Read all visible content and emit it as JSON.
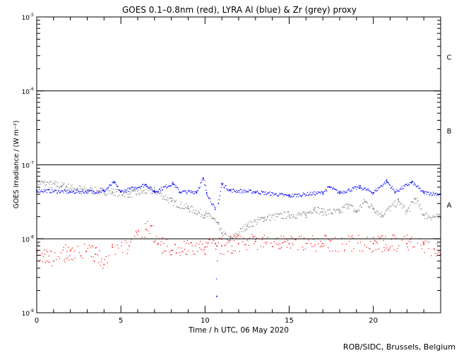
{
  "chart_data": {
    "type": "scatter",
    "title": "GOES 0.1–0.8nm (red), LYRA Al (blue) & Zr (grey) proxy",
    "xlabel": "Time / h UTC, 06 May 2020",
    "ylabel": "GOES Irradiance / (W m⁻²)",
    "xlim": [
      0,
      24
    ],
    "ylim": [
      1e-09,
      1e-05
    ],
    "yscale": "log",
    "xticks": [
      0,
      5,
      10,
      15,
      20
    ],
    "yticks": [
      {
        "base": "10",
        "exp": "-9",
        "v": 1e-09
      },
      {
        "base": "10",
        "exp": "-8",
        "v": 1e-08
      },
      {
        "base": "10",
        "exp": "-7",
        "v": 1e-07
      },
      {
        "base": "10",
        "exp": "-6",
        "v": 1e-06
      },
      {
        "base": "10",
        "exp": "-5",
        "v": 1e-05
      }
    ],
    "flare_classes": [
      {
        "label": "A",
        "lo": 1e-08
      },
      {
        "label": "B",
        "lo": 1e-07
      },
      {
        "label": "C",
        "lo": 1e-06
      }
    ],
    "series": [
      {
        "name": "LYRA Zr proxy",
        "color": "#808080",
        "points": [
          [
            0,
            5.8e-08
          ],
          [
            1.5,
            5.2e-08
          ],
          [
            3,
            4.5e-08
          ],
          [
            4.5,
            4.3e-08
          ],
          [
            5.5,
            4e-08
          ],
          [
            7,
            4.5e-08
          ],
          [
            8,
            3.2e-08
          ],
          [
            9,
            2.6e-08
          ],
          [
            10,
            2.1e-08
          ],
          [
            10.5,
            1.9e-08
          ],
          [
            11,
            1.2e-08
          ],
          [
            11.5,
            9.6e-09
          ],
          [
            12.5,
            1.5e-08
          ],
          [
            13.5,
            1.9e-08
          ],
          [
            15,
            2.1e-08
          ],
          [
            16,
            2.1e-08
          ],
          [
            16.5,
            2.6e-08
          ],
          [
            17,
            2.3e-08
          ],
          [
            18,
            2.3e-08
          ],
          [
            18.5,
            2.9e-08
          ],
          [
            19,
            2.3e-08
          ],
          [
            19.5,
            3.2e-08
          ],
          [
            20,
            2.6e-08
          ],
          [
            20.5,
            2.1e-08
          ],
          [
            21.5,
            3.2e-08
          ],
          [
            22,
            2.3e-08
          ],
          [
            22.5,
            3.5e-08
          ],
          [
            23,
            2.1e-08
          ],
          [
            24,
            1.9e-08
          ]
        ]
      },
      {
        "name": "LYRA Al proxy",
        "color": "#0000ff",
        "points": [
          [
            0,
            4.5e-08
          ],
          [
            2,
            4.3e-08
          ],
          [
            4,
            4.4e-08
          ],
          [
            4.6,
            5.8e-08
          ],
          [
            5,
            4.3e-08
          ],
          [
            6.5,
            5.4e-08
          ],
          [
            7,
            4.3e-08
          ],
          [
            8.1,
            5.6e-08
          ],
          [
            8.5,
            4.3e-08
          ],
          [
            9.5,
            4.3e-08
          ],
          [
            9.9,
            6.5e-08
          ],
          [
            10.1,
            4.2e-08
          ],
          [
            10.6,
            2.5e-08
          ],
          [
            10.7,
            1.66e-09
          ],
          [
            10.8,
            3e-08
          ],
          [
            11,
            5.5e-08
          ],
          [
            11.5,
            4.5e-08
          ],
          [
            13,
            4.3e-08
          ],
          [
            15,
            3.8e-08
          ],
          [
            17,
            4.2e-08
          ],
          [
            17.4,
            5e-08
          ],
          [
            18,
            4.2e-08
          ],
          [
            19.2,
            5e-08
          ],
          [
            20,
            4.2e-08
          ],
          [
            20.8,
            6e-08
          ],
          [
            21.3,
            4.3e-08
          ],
          [
            22.3,
            5.8e-08
          ],
          [
            23,
            4.2e-08
          ],
          [
            24,
            4e-08
          ]
        ]
      },
      {
        "name": "GOES 0.1-0.8nm",
        "color": "#ff0000",
        "points": [
          [
            0,
            6.9e-09
          ],
          [
            1,
            5e-09
          ],
          [
            2,
            6.9e-09
          ],
          [
            3.5,
            6.2e-09
          ],
          [
            4,
            4.5e-09
          ],
          [
            4.5,
            7.7e-09
          ],
          [
            5.5,
            8e-09
          ],
          [
            6.5,
            1.34e-08
          ],
          [
            6.8,
            1.5e-08
          ],
          [
            7.2,
            8.6e-09
          ],
          [
            8,
            6.9e-09
          ],
          [
            10,
            7.7e-09
          ],
          [
            11,
            8e-09
          ],
          [
            12,
            8.6e-09
          ],
          [
            13,
            9.2e-09
          ],
          [
            15,
            8.6e-09
          ],
          [
            17,
            8.6e-09
          ],
          [
            20,
            8.6e-09
          ],
          [
            22,
            8.6e-09
          ],
          [
            23,
            8.6e-09
          ],
          [
            24,
            6.2e-09
          ]
        ]
      }
    ]
  },
  "credit": "ROB/SIDC, Brussels, Belgium"
}
